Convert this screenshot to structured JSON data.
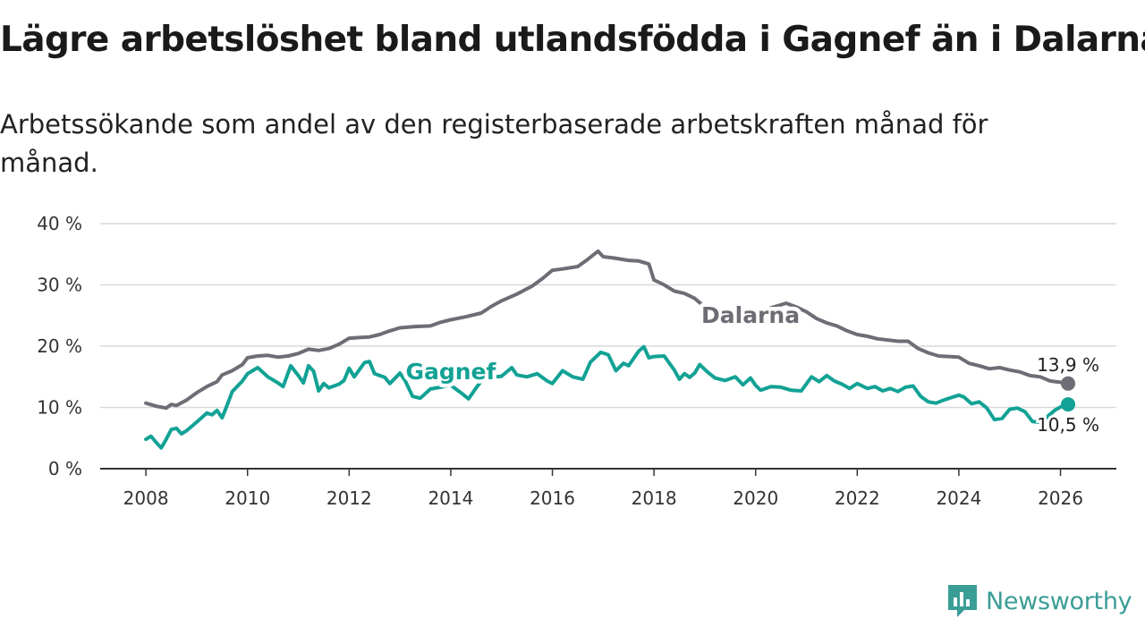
{
  "header": {
    "title": "Lägre arbetslöshet bland utlandsfödda i Gagnef än i Dalarna",
    "subtitle": "Arbetssökande som andel av den registerbaserade arbetskraften månad för månad."
  },
  "brand": {
    "name": "Newsworthy",
    "color": "#3a9d96"
  },
  "colors": {
    "dalarna": "#6e6d75",
    "gagnef": "#12a295",
    "grid": "#d9d9d9",
    "axis": "#333333"
  },
  "chart_data": {
    "type": "line",
    "title": "Lägre arbetslöshet bland utlandsfödda i Gagnef än i Dalarna",
    "subtitle": "Arbetssökande som andel av den registerbaserade arbetskraften månad för månad.",
    "xlabel": "",
    "ylabel": "",
    "xlim": [
      2007.1,
      2027.1
    ],
    "ylim": [
      0,
      40
    ],
    "x_ticks": [
      2008,
      2010,
      2012,
      2014,
      2016,
      2018,
      2020,
      2022,
      2024,
      2026
    ],
    "x_tick_labels": [
      "2008",
      "2010",
      "2012",
      "2014",
      "2016",
      "2018",
      "2020",
      "2022",
      "2024",
      "2026"
    ],
    "y_ticks": [
      0,
      10,
      20,
      30,
      40
    ],
    "y_tick_labels": [
      "0 %",
      "10 %",
      "20 %",
      "30 %",
      "40 %"
    ],
    "grid": true,
    "legend": "inline labels",
    "series": [
      {
        "name": "Dalarna",
        "color": "#6e6d75",
        "end_label": "13,9 %",
        "points": [
          [
            2008.0,
            10.7
          ],
          [
            2008.2,
            10.2
          ],
          [
            2008.4,
            9.9
          ],
          [
            2008.5,
            10.5
          ],
          [
            2008.6,
            10.3
          ],
          [
            2008.8,
            11.2
          ],
          [
            2009.0,
            12.4
          ],
          [
            2009.2,
            13.4
          ],
          [
            2009.4,
            14.2
          ],
          [
            2009.5,
            15.3
          ],
          [
            2009.7,
            16.0
          ],
          [
            2009.9,
            17.0
          ],
          [
            2010.0,
            18.1
          ],
          [
            2010.2,
            18.4
          ],
          [
            2010.4,
            18.5
          ],
          [
            2010.6,
            18.2
          ],
          [
            2010.8,
            18.4
          ],
          [
            2011.0,
            18.8
          ],
          [
            2011.2,
            19.5
          ],
          [
            2011.4,
            19.3
          ],
          [
            2011.6,
            19.6
          ],
          [
            2011.8,
            20.3
          ],
          [
            2012.0,
            21.3
          ],
          [
            2012.2,
            21.4
          ],
          [
            2012.4,
            21.5
          ],
          [
            2012.6,
            21.9
          ],
          [
            2012.8,
            22.5
          ],
          [
            2013.0,
            23.0
          ],
          [
            2013.3,
            23.2
          ],
          [
            2013.6,
            23.3
          ],
          [
            2013.8,
            23.9
          ],
          [
            2014.0,
            24.3
          ],
          [
            2014.3,
            24.8
          ],
          [
            2014.6,
            25.4
          ],
          [
            2014.8,
            26.5
          ],
          [
            2015.0,
            27.4
          ],
          [
            2015.3,
            28.5
          ],
          [
            2015.6,
            29.8
          ],
          [
            2015.8,
            31.0
          ],
          [
            2016.0,
            32.4
          ],
          [
            2016.2,
            32.6
          ],
          [
            2016.5,
            33.0
          ],
          [
            2016.7,
            34.2
          ],
          [
            2016.9,
            35.5
          ],
          [
            2017.0,
            34.6
          ],
          [
            2017.2,
            34.4
          ],
          [
            2017.5,
            34.0
          ],
          [
            2017.7,
            33.9
          ],
          [
            2017.9,
            33.4
          ],
          [
            2018.0,
            30.8
          ],
          [
            2018.2,
            30.0
          ],
          [
            2018.4,
            29.0
          ],
          [
            2018.6,
            28.6
          ],
          [
            2018.8,
            27.8
          ],
          [
            2019.0,
            26.4
          ],
          [
            2019.2,
            25.0
          ],
          [
            2019.4,
            24.5
          ],
          [
            2019.6,
            25.0
          ],
          [
            2019.8,
            25.5
          ],
          [
            2020.0,
            25.6
          ],
          [
            2020.2,
            26.0
          ],
          [
            2020.4,
            26.5
          ],
          [
            2020.6,
            27.0
          ],
          [
            2020.8,
            26.4
          ],
          [
            2021.0,
            25.6
          ],
          [
            2021.2,
            24.5
          ],
          [
            2021.4,
            23.8
          ],
          [
            2021.6,
            23.3
          ],
          [
            2021.8,
            22.5
          ],
          [
            2022.0,
            21.9
          ],
          [
            2022.2,
            21.6
          ],
          [
            2022.4,
            21.2
          ],
          [
            2022.6,
            21.0
          ],
          [
            2022.8,
            20.8
          ],
          [
            2023.0,
            20.8
          ],
          [
            2023.2,
            19.6
          ],
          [
            2023.4,
            18.9
          ],
          [
            2023.6,
            18.4
          ],
          [
            2023.8,
            18.3
          ],
          [
            2024.0,
            18.2
          ],
          [
            2024.2,
            17.2
          ],
          [
            2024.4,
            16.8
          ],
          [
            2024.6,
            16.3
          ],
          [
            2024.8,
            16.5
          ],
          [
            2025.0,
            16.1
          ],
          [
            2025.2,
            15.8
          ],
          [
            2025.4,
            15.2
          ],
          [
            2025.6,
            15.0
          ],
          [
            2025.8,
            14.3
          ],
          [
            2026.0,
            14.1
          ],
          [
            2026.15,
            13.9
          ]
        ]
      },
      {
        "name": "Gagnef",
        "color": "#12a295",
        "end_label": "10,5 %",
        "points": [
          [
            2008.0,
            4.8
          ],
          [
            2008.1,
            5.3
          ],
          [
            2008.2,
            4.3
          ],
          [
            2008.3,
            3.4
          ],
          [
            2008.4,
            4.8
          ],
          [
            2008.5,
            6.4
          ],
          [
            2008.6,
            6.6
          ],
          [
            2008.7,
            5.7
          ],
          [
            2008.8,
            6.2
          ],
          [
            2009.0,
            7.6
          ],
          [
            2009.2,
            9.1
          ],
          [
            2009.3,
            8.8
          ],
          [
            2009.4,
            9.5
          ],
          [
            2009.5,
            8.3
          ],
          [
            2009.6,
            10.4
          ],
          [
            2009.7,
            12.6
          ],
          [
            2009.9,
            14.3
          ],
          [
            2010.0,
            15.5
          ],
          [
            2010.2,
            16.5
          ],
          [
            2010.4,
            15.0
          ],
          [
            2010.6,
            14.0
          ],
          [
            2010.7,
            13.4
          ],
          [
            2010.85,
            16.8
          ],
          [
            2011.0,
            15.2
          ],
          [
            2011.1,
            14.0
          ],
          [
            2011.2,
            16.8
          ],
          [
            2011.3,
            15.9
          ],
          [
            2011.4,
            12.7
          ],
          [
            2011.5,
            13.9
          ],
          [
            2011.6,
            13.2
          ],
          [
            2011.8,
            13.8
          ],
          [
            2011.9,
            14.4
          ],
          [
            2012.0,
            16.4
          ],
          [
            2012.1,
            15.0
          ],
          [
            2012.3,
            17.3
          ],
          [
            2012.4,
            17.5
          ],
          [
            2012.5,
            15.5
          ],
          [
            2012.7,
            14.9
          ],
          [
            2012.8,
            13.9
          ],
          [
            2013.0,
            15.6
          ],
          [
            2013.1,
            14.4
          ],
          [
            2013.25,
            11.8
          ],
          [
            2013.4,
            11.5
          ],
          [
            2013.6,
            13.0
          ],
          [
            2013.8,
            13.3
          ],
          [
            2014.0,
            13.6
          ],
          [
            2014.2,
            12.4
          ],
          [
            2014.35,
            11.4
          ],
          [
            2014.5,
            13.2
          ],
          [
            2014.6,
            14.3
          ],
          [
            2014.8,
            14.9
          ],
          [
            2015.0,
            15.1
          ],
          [
            2015.2,
            16.5
          ],
          [
            2015.3,
            15.3
          ],
          [
            2015.5,
            15.0
          ],
          [
            2015.7,
            15.5
          ],
          [
            2015.9,
            14.3
          ],
          [
            2016.0,
            13.9
          ],
          [
            2016.2,
            16.0
          ],
          [
            2016.4,
            15.0
          ],
          [
            2016.6,
            14.6
          ],
          [
            2016.75,
            17.4
          ],
          [
            2016.95,
            19.0
          ],
          [
            2017.1,
            18.6
          ],
          [
            2017.25,
            16.0
          ],
          [
            2017.4,
            17.2
          ],
          [
            2017.5,
            16.8
          ],
          [
            2017.7,
            19.2
          ],
          [
            2017.8,
            19.9
          ],
          [
            2017.9,
            18.1
          ],
          [
            2018.0,
            18.3
          ],
          [
            2018.2,
            18.4
          ],
          [
            2018.4,
            16.1
          ],
          [
            2018.5,
            14.6
          ],
          [
            2018.6,
            15.5
          ],
          [
            2018.7,
            14.9
          ],
          [
            2018.8,
            15.6
          ],
          [
            2018.9,
            17.0
          ],
          [
            2019.05,
            15.8
          ],
          [
            2019.2,
            14.8
          ],
          [
            2019.4,
            14.4
          ],
          [
            2019.6,
            15.0
          ],
          [
            2019.75,
            13.7
          ],
          [
            2019.9,
            14.8
          ],
          [
            2020.0,
            13.6
          ],
          [
            2020.1,
            12.8
          ],
          [
            2020.3,
            13.4
          ],
          [
            2020.5,
            13.3
          ],
          [
            2020.7,
            12.8
          ],
          [
            2020.9,
            12.7
          ],
          [
            2021.1,
            15.0
          ],
          [
            2021.25,
            14.2
          ],
          [
            2021.4,
            15.2
          ],
          [
            2021.55,
            14.3
          ],
          [
            2021.7,
            13.8
          ],
          [
            2021.85,
            13.1
          ],
          [
            2022.0,
            13.9
          ],
          [
            2022.2,
            13.1
          ],
          [
            2022.35,
            13.4
          ],
          [
            2022.5,
            12.7
          ],
          [
            2022.65,
            13.1
          ],
          [
            2022.8,
            12.6
          ],
          [
            2022.95,
            13.3
          ],
          [
            2023.1,
            13.5
          ],
          [
            2023.25,
            11.8
          ],
          [
            2023.4,
            10.9
          ],
          [
            2023.55,
            10.7
          ],
          [
            2023.7,
            11.2
          ],
          [
            2023.85,
            11.6
          ],
          [
            2024.0,
            12.0
          ],
          [
            2024.1,
            11.7
          ],
          [
            2024.25,
            10.6
          ],
          [
            2024.4,
            10.9
          ],
          [
            2024.55,
            9.9
          ],
          [
            2024.7,
            8.0
          ],
          [
            2024.85,
            8.2
          ],
          [
            2025.0,
            9.7
          ],
          [
            2025.15,
            9.9
          ],
          [
            2025.3,
            9.3
          ],
          [
            2025.45,
            7.7
          ],
          [
            2025.55,
            7.6
          ],
          [
            2025.7,
            8.2
          ],
          [
            2025.9,
            9.6
          ],
          [
            2026.05,
            10.3
          ],
          [
            2026.15,
            10.5
          ]
        ]
      }
    ]
  }
}
